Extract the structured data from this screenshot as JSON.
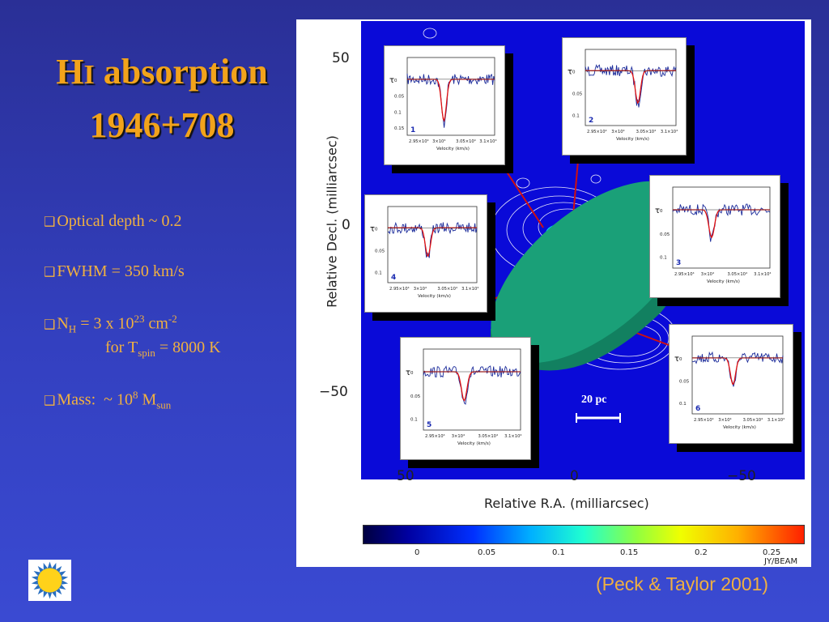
{
  "slide": {
    "title_h": "H",
    "title_i": "I",
    "title_rest": " absorption",
    "title_line2": "1946+708",
    "citation": "(Peck & Taylor 2001)",
    "bullets": {
      "b1": "Optical depth ~ 0.2",
      "b2": "FWHM = 350 km/s",
      "b3_pre": "N",
      "b3_sub": "H",
      "b3_mid": " = 3 x 10",
      "b3_sup": "23",
      "b3_unit": " cm",
      "b3_unit_sup": "-2",
      "b3_line2_pre": "for T",
      "b3_line2_sub": "spin",
      "b3_line2_post": " = 8000 K",
      "b4_pre": "Mass:  ~ 10",
      "b4_sup": "8",
      "b4_mid": " M",
      "b4_sub": "sun"
    },
    "logo_icon": "sun-icon"
  },
  "figure": {
    "y_axis_label": "Relative Decl. (milliarcsec)",
    "x_axis_label": "Relative R.A. (milliarcsec)",
    "y_ticks": [
      "50",
      "0",
      "−50"
    ],
    "x_ticks": [
      "50",
      "0",
      "−50"
    ],
    "scale_bar_label": "20 pc",
    "colorbar_ticks": [
      "0",
      "0.05",
      "0.1",
      "0.15",
      "0.2",
      "0.25"
    ],
    "colorbar_unit": "JY/BEAM",
    "disk_color": "#1aa078",
    "map_color": "#0a0ad8",
    "insets": [
      {
        "num": "1",
        "y_label": "τ",
        "y_ticks": [
          "0",
          "0.05",
          "0.1",
          "0.15"
        ],
        "x_ticks": [
          "2.95×10⁴",
          "3×10⁴",
          "3.05×10⁴",
          "3.1×10⁴"
        ],
        "x_label": "Velocity (km/s)"
      },
      {
        "num": "2",
        "y_label": "τ",
        "y_ticks": [
          "0",
          "0.05",
          "0.1"
        ],
        "x_ticks": [
          "2.95×10⁴",
          "3×10⁴",
          "3.05×10⁴",
          "3.1×10⁴"
        ],
        "x_label": "Velocity (km/s)"
      },
      {
        "num": "3",
        "y_label": "τ",
        "y_ticks": [
          "0",
          "0.05",
          "0.1"
        ],
        "x_ticks": [
          "2.95×10⁴",
          "3×10⁴",
          "3.05×10⁴",
          "3.1×10⁴"
        ],
        "x_label": "Velocity (km/s)"
      },
      {
        "num": "4",
        "y_label": "τ",
        "y_ticks": [
          "0",
          "0.05",
          "0.1"
        ],
        "x_ticks": [
          "2.95×10⁴",
          "3×10⁴",
          "3.05×10⁴",
          "3.1×10⁴"
        ],
        "x_label": "Velocity (km/s)"
      },
      {
        "num": "5",
        "y_label": "τ",
        "y_ticks": [
          "0",
          "0.05",
          "0.1"
        ],
        "x_ticks": [
          "2.95×10⁴",
          "3×10⁴",
          "3.05×10⁴",
          "3.1×10⁴"
        ],
        "x_label": "Velocity (km/s)"
      },
      {
        "num": "6",
        "y_label": "τ",
        "y_ticks": [
          "0",
          "0.05",
          "0.1"
        ],
        "x_ticks": [
          "2.95×10⁴",
          "3×10⁴",
          "3.05×10⁴",
          "3.1×10⁴"
        ],
        "x_label": "Velocity (km/s)"
      }
    ]
  }
}
